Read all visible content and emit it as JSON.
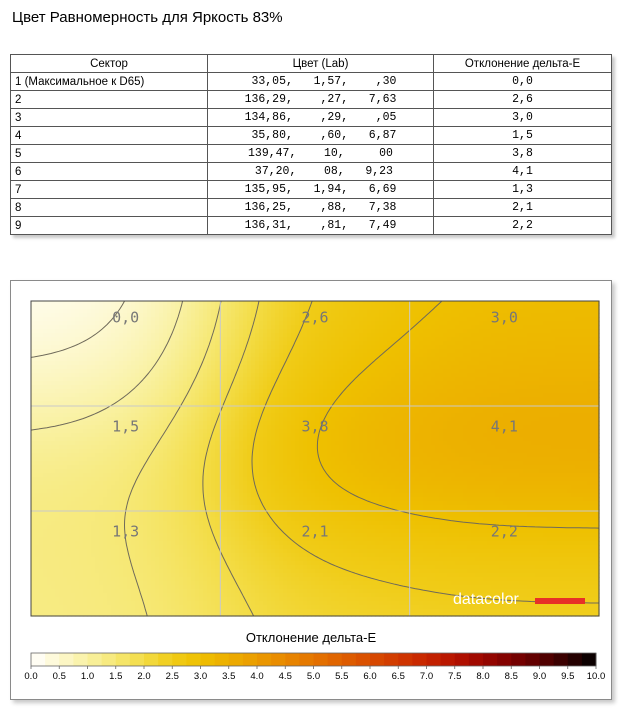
{
  "title": "Цвет Равномерность для Яркость 83%",
  "table": {
    "headers": [
      "Сектор",
      "Цвет (Lab)",
      "Отклонение дельта-E"
    ],
    "rows": [
      {
        "sector": "1 (Максимальное к D65)",
        "lab": " 33,05,   1,57,    ,30",
        "de": "0,0"
      },
      {
        "sector": "2",
        "lab": "136,29,    ,27,   7,63",
        "de": "2,6"
      },
      {
        "sector": "3",
        "lab": "134,86,    ,29,    ,05",
        "de": "3,0"
      },
      {
        "sector": "4",
        "lab": " 35,80,    ,60,   6,87",
        "de": "1,5"
      },
      {
        "sector": "5",
        "lab": "139,47,    10,     00",
        "de": "3,8"
      },
      {
        "sector": "6",
        "lab": " 37,20,    08,   9,23",
        "de": "4,1"
      },
      {
        "sector": "7",
        "lab": "135,95,   1,94,   6,69",
        "de": "1,3"
      },
      {
        "sector": "8",
        "lab": "136,25,    ,88,   7,38",
        "de": "2,1"
      },
      {
        "sector": "9",
        "lab": "136,31,    ,81,   7,49",
        "de": "2,2"
      }
    ]
  },
  "chart_data": {
    "type": "heatmap",
    "title": "Отклонение дельта-E",
    "grid": true,
    "rows": 3,
    "cols": 3,
    "values": [
      [
        0.0,
        2.6,
        3.0
      ],
      [
        1.5,
        3.8,
        4.1
      ],
      [
        1.3,
        2.1,
        2.2
      ]
    ],
    "labels": [
      [
        "0,0",
        "2,6",
        "3,0"
      ],
      [
        "1,5",
        "3,8",
        "4,1"
      ],
      [
        "1,3",
        "2,1",
        "2,2"
      ]
    ],
    "scale_min": 0,
    "scale_max": 10,
    "scale_ticks": [
      "0.0",
      "0.5",
      "1.0",
      "1.5",
      "2.0",
      "2.5",
      "3.0",
      "3.5",
      "4.0",
      "4.5",
      "5.0",
      "5.5",
      "6.0",
      "6.5",
      "7.0",
      "7.5",
      "8.0",
      "8.5",
      "9.0",
      "9.5",
      "10.0"
    ],
    "colors": [
      "#ffffff",
      "#fdf8cf",
      "#f9f1a2",
      "#f6e874",
      "#f3dc45",
      "#f0cc18",
      "#eec000",
      "#ecad00",
      "#ea9b00",
      "#e88800",
      "#e47400",
      "#de6000",
      "#d84c00",
      "#d03800",
      "#c62400",
      "#b61200",
      "#9a0600",
      "#7c0000",
      "#5a0000",
      "#300000",
      "#000000"
    ],
    "watermark": "datacolor",
    "accent": "#e73127"
  }
}
